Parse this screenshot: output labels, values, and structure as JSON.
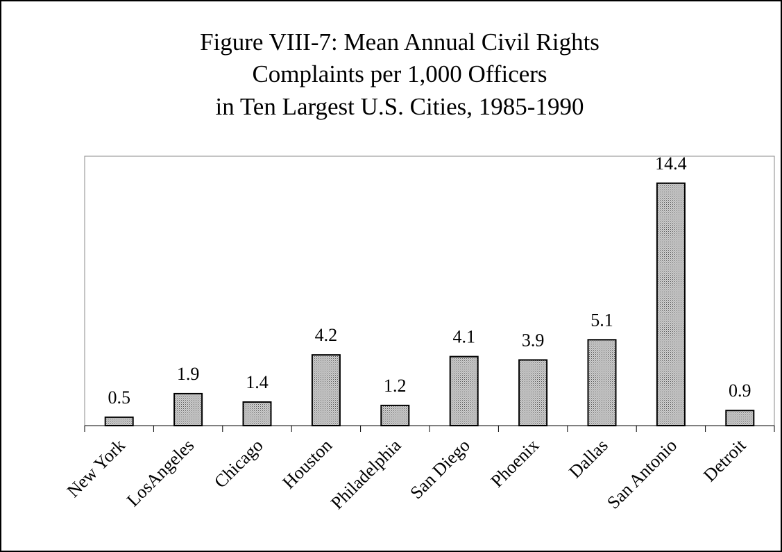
{
  "chart_data": {
    "type": "bar",
    "title": [
      "Figure VIII-7: Mean Annual Civil Rights",
      "Complaints per 1,000 Officers",
      "in Ten Largest U.S. Cities, 1985-1990"
    ],
    "categories": [
      "New York",
      "LosAngeles",
      "Chicago",
      "Houston",
      "Philadelphia",
      "San Diego",
      "Phoenix",
      "Dallas",
      "San Antonio",
      "Detroit"
    ],
    "values": [
      0.5,
      1.9,
      1.4,
      4.2,
      1.2,
      4.1,
      3.9,
      5.1,
      14.4,
      0.9
    ],
    "color": "#b4b4b4",
    "ylim": [
      0,
      16
    ]
  }
}
